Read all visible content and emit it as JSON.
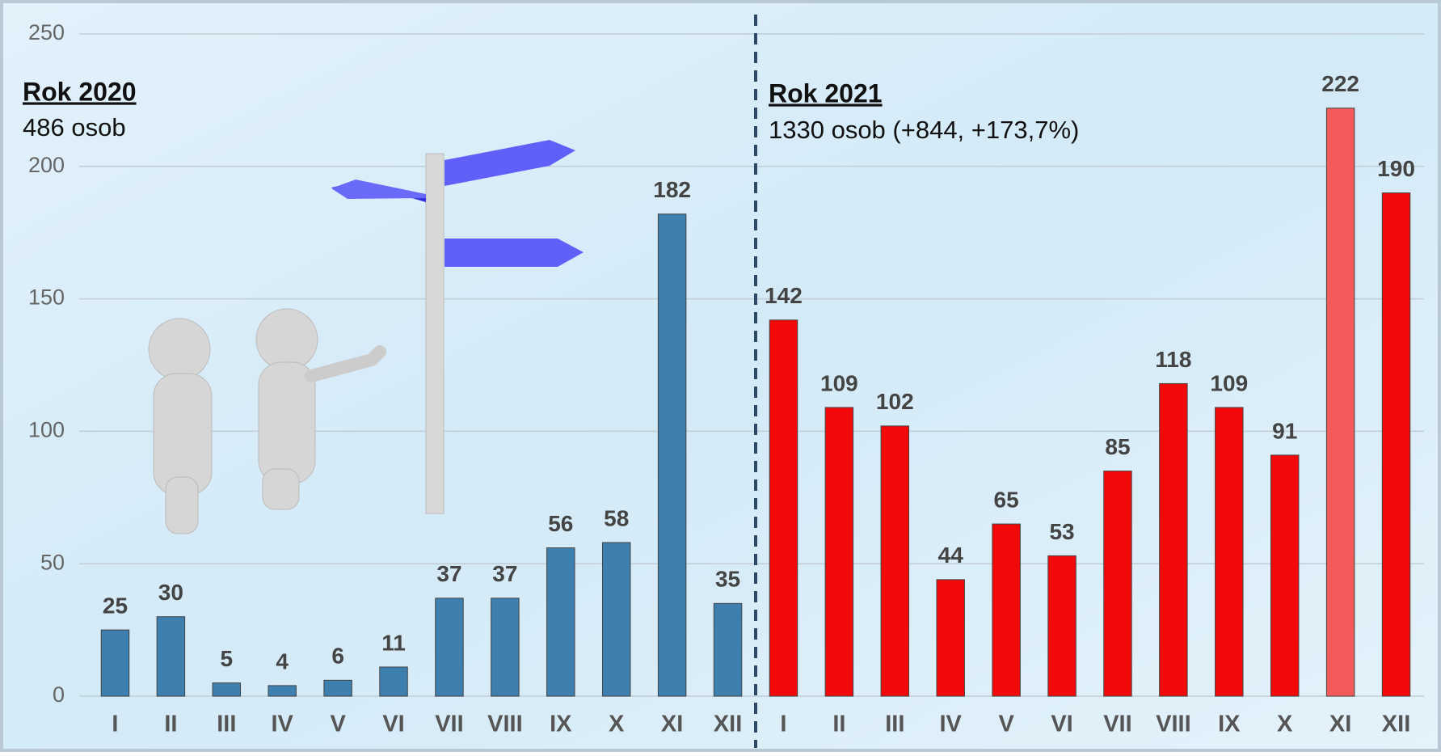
{
  "chart_data": {
    "type": "bar",
    "categories": [
      "I",
      "II",
      "III",
      "IV",
      "V",
      "VI",
      "VII",
      "VIII",
      "IX",
      "X",
      "XI",
      "XII",
      "I",
      "II",
      "III",
      "IV",
      "V",
      "VI",
      "VII",
      "VIII",
      "IX",
      "X",
      "XI",
      "XII"
    ],
    "values": [
      25,
      30,
      5,
      4,
      6,
      11,
      37,
      37,
      56,
      58,
      182,
      35,
      142,
      109,
      102,
      44,
      65,
      53,
      85,
      118,
      109,
      91,
      222,
      190
    ],
    "colors": [
      "#3d7fae",
      "#3d7fae",
      "#3d7fae",
      "#3d7fae",
      "#3d7fae",
      "#3d7fae",
      "#3d7fae",
      "#3d7fae",
      "#3d7fae",
      "#3d7fae",
      "#3d7fae",
      "#3d7fae",
      "#f20a0a",
      "#f20a0a",
      "#f20a0a",
      "#f20a0a",
      "#f20a0a",
      "#f20a0a",
      "#f20a0a",
      "#f20a0a",
      "#f20a0a",
      "#f20a0a",
      "#f55a5a",
      "#f20a0a"
    ],
    "ylim": [
      0,
      250
    ],
    "yticks": [
      0,
      50,
      100,
      150,
      200,
      250
    ],
    "grid": true,
    "groups": [
      {
        "title": "Rok 2020",
        "subtitle": "486 osob"
      },
      {
        "title": "Rok 2021",
        "subtitle": "1330 osob (+844, +173,7%)"
      }
    ]
  }
}
